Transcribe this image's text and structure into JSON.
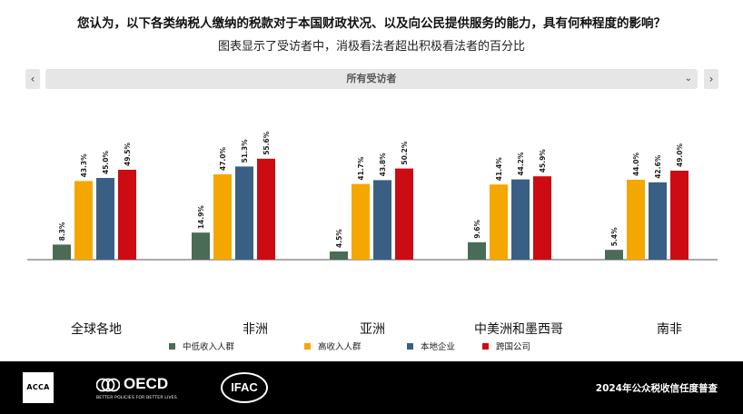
{
  "header": {
    "title": "您认为，以下各类纳税人缴纳的税款对于本国财政状况、以及向公民提供服务的能力，具有何种程度的影响？",
    "subtitle": "图表显示了受访者中，消极看法者超出积极看法者的百分比"
  },
  "navigation": {
    "prev_label": "‹",
    "next_label": "›",
    "selector_value": "所有受访者",
    "selector_icon": "chevron-down-icon"
  },
  "chart_data": {
    "type": "bar",
    "categories": [
      "全球各地",
      "非洲",
      "亚洲",
      "中美洲和墨西哥",
      "南非"
    ],
    "series": [
      {
        "name": "中低收入人群",
        "color": "#4a6b56",
        "values": [
          8.3,
          14.9,
          4.5,
          9.6,
          5.4
        ]
      },
      {
        "name": "高收入人群",
        "color": "#f4a700",
        "values": [
          43.3,
          47.0,
          41.7,
          41.4,
          44.0
        ]
      },
      {
        "name": "本地企业",
        "color": "#3a5f84",
        "values": [
          45.0,
          51.3,
          43.8,
          44.2,
          42.6
        ]
      },
      {
        "name": "跨国公司",
        "color": "#cc0b12",
        "values": [
          49.5,
          55.6,
          50.2,
          45.9,
          49.0
        ]
      }
    ],
    "value_labels": [
      [
        "8.3%",
        "43.3%",
        "45.0%",
        "49.5%"
      ],
      [
        "14.9%",
        "47.0%",
        "51.3%",
        "55.6%"
      ],
      [
        "4.5%",
        "41.7%",
        "43.8%",
        "50.2%"
      ],
      [
        "9.6%",
        "41.4%",
        "44.2%",
        "45.9%"
      ],
      [
        "5.4%",
        "44.0%",
        "42.6%",
        "49.0%"
      ]
    ],
    "ylim": [
      0,
      60
    ],
    "grid": false,
    "legend_position": "bottom",
    "title": "",
    "xlabel": "",
    "ylabel": ""
  },
  "footer": {
    "acca_logo": "ACCA",
    "oecd_logo": "OECD",
    "oecd_tagline": "BETTER POLICIES FOR BETTER LIVES",
    "ifac_logo": "IFAC",
    "report_title": "2024年公众税收信任度普查"
  }
}
